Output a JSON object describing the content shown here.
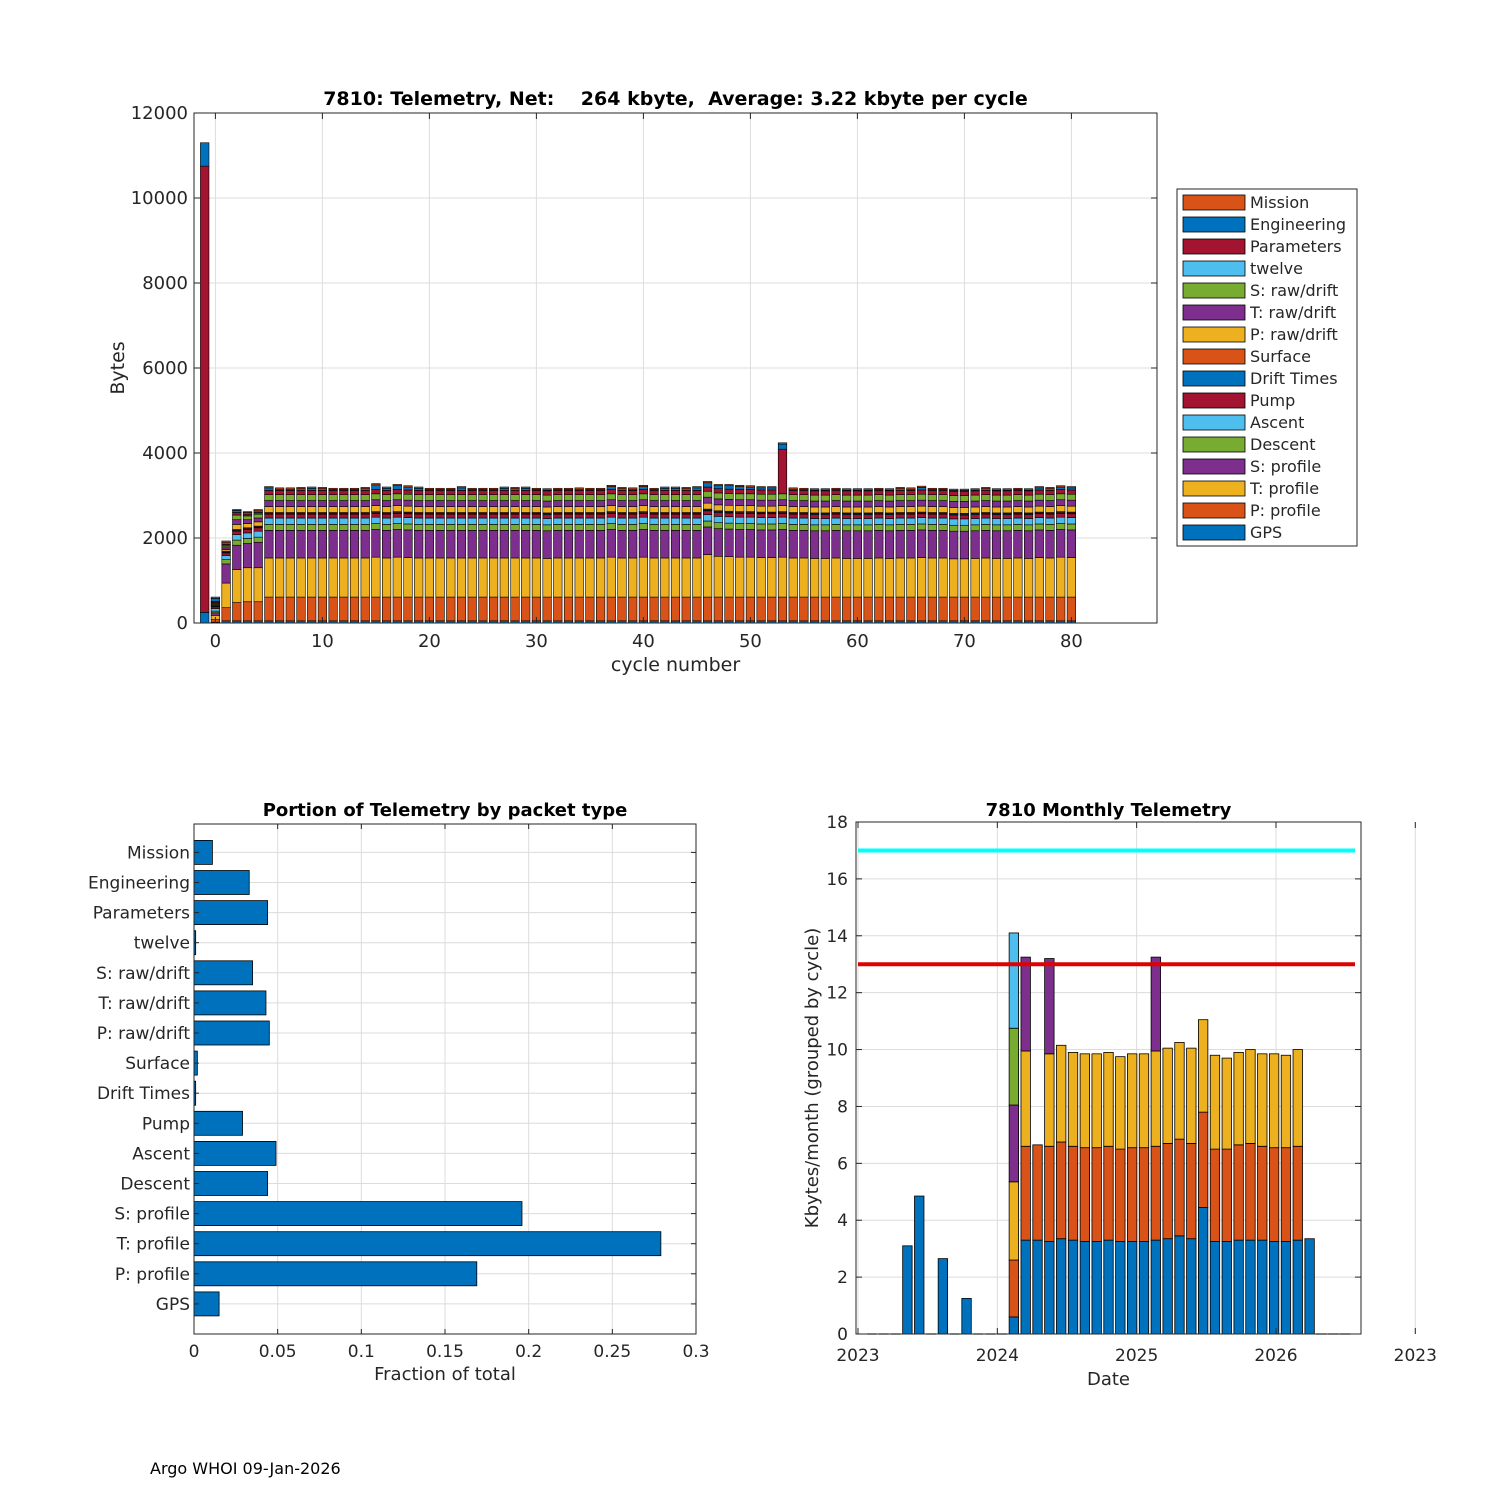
{
  "colors": {
    "GPS": "#0072BD",
    "P: profile": "#D95319",
    "T: profile": "#EDB120",
    "S: profile": "#7E2F8E",
    "Descent": "#77AC30",
    "Ascent": "#4DBEEE",
    "Pump": "#A2142F",
    "Drift Times": "#0072BD",
    "Surface": "#D95319",
    "P: raw/drift": "#EDB120",
    "T: raw/drift": "#7E2F8E",
    "S: raw/drift": "#77AC30",
    "twelve": "#4DBEEE",
    "Parameters": "#A2142F",
    "Engineering": "#0072BD",
    "Mission": "#D95319",
    "cyan_line": "#00FFFF",
    "red_line": "#E00000",
    "grid": "#dcdcdc"
  },
  "footer": "Argo WHOI 09-Jan-2026",
  "chart_data": [
    {
      "type": "bar",
      "stacked": true,
      "title": "7810: Telemetry, Net:    264 kbyte,  Average: 3.22 kbyte per cycle",
      "xlabel": "cycle number",
      "ylabel": "Bytes",
      "xlim": [
        -2,
        88
      ],
      "ylim": [
        0,
        12000
      ],
      "xticks": [
        0,
        10,
        20,
        30,
        40,
        50,
        60,
        70,
        80
      ],
      "yticks": [
        0,
        2000,
        4000,
        6000,
        8000,
        10000,
        12000
      ],
      "legend_position": "outside-right",
      "legend": [
        "Mission",
        "Engineering",
        "Parameters",
        "twelve",
        "S: raw/drift",
        "T: raw/drift",
        "P: raw/drift",
        "Surface",
        "Drift Times",
        "Pump",
        "Ascent",
        "Descent",
        "S: profile",
        "T: profile",
        "P: profile",
        "GPS"
      ],
      "stack_order": [
        "GPS",
        "P: profile",
        "T: profile",
        "S: profile",
        "Descent",
        "Ascent",
        "Pump",
        "Drift Times",
        "Surface",
        "P: raw/drift",
        "T: raw/drift",
        "S: raw/drift",
        "twelve",
        "Parameters",
        "Engineering",
        "Mission"
      ],
      "series_special": [
        {
          "x": -1,
          "segments": {
            "GPS": 250,
            "Pump": 10500,
            "Engineering": 550
          }
        },
        {
          "x": 0,
          "segments": {
            "GPS": 20,
            "P: profile": 60,
            "T: profile": 100,
            "S: profile": 60,
            "Descent": 40,
            "Ascent": 60,
            "Pump": 40,
            "Drift Times": 20,
            "Surface": 20,
            "P: raw/drift": 20,
            "T: raw/drift": 20,
            "S: raw/drift": 20,
            "Parameters": 30,
            "Engineering": 70,
            "Mission": 30
          }
        },
        {
          "x": 1,
          "segments": {
            "GPS": 50,
            "P: profile": 310,
            "T: profile": 580,
            "S: profile": 450,
            "Descent": 100,
            "Ascent": 100,
            "Pump": 60,
            "Drift Times": 20,
            "Surface": 20,
            "P: raw/drift": 40,
            "T: raw/drift": 40,
            "S: raw/drift": 40,
            "Parameters": 40,
            "Engineering": 40,
            "Mission": 40
          }
        },
        {
          "x": 2,
          "segments": {
            "GPS": 50,
            "P: profile": 430,
            "T: profile": 780,
            "S: profile": 570,
            "Descent": 120,
            "Ascent": 130,
            "Pump": 80,
            "Drift Times": 20,
            "Surface": 20,
            "P: raw/drift": 120,
            "T: raw/drift": 110,
            "S: raw/drift": 110,
            "Parameters": 60,
            "Engineering": 50,
            "Mission": 20
          }
        },
        {
          "x": 3,
          "segments": {
            "GPS": 50,
            "P: profile": 450,
            "T: profile": 800,
            "S: profile": 570,
            "Descent": 120,
            "Ascent": 130,
            "Pump": 80,
            "Drift Times": 20,
            "Surface": 20,
            "P: raw/drift": 100,
            "T: raw/drift": 90,
            "S: raw/drift": 90,
            "Parameters": 40,
            "Engineering": 40,
            "Mission": 20
          }
        },
        {
          "x": 4,
          "segments": {
            "GPS": 50,
            "P: profile": 450,
            "T: profile": 800,
            "S: profile": 600,
            "Descent": 120,
            "Ascent": 140,
            "Pump": 80,
            "Drift Times": 20,
            "Surface": 20,
            "P: raw/drift": 100,
            "T: raw/drift": 90,
            "S: raw/drift": 90,
            "Parameters": 40,
            "Engineering": 40,
            "Mission": 30
          }
        },
        {
          "x": 53,
          "segments": {
            "GPS": 50,
            "P: profile": 560,
            "T: profile": 940,
            "S: profile": 650,
            "Descent": 140,
            "Ascent": 150,
            "Pump": 90,
            "Drift Times": 20,
            "Surface": 20,
            "P: raw/drift": 140,
            "T: raw/drift": 140,
            "S: raw/drift": 140,
            "Parameters": 1050,
            "Engineering": 120,
            "Mission": 30
          }
        }
      ],
      "typical_cycle": {
        "GPS": 50,
        "P: profile": 560,
        "T: profile": 920,
        "S: profile": 650,
        "Descent": 140,
        "Ascent": 150,
        "Pump": 90,
        "Drift Times": 20,
        "Surface": 20,
        "P: raw/drift": 140,
        "T: raw/drift": 140,
        "S: raw/drift": 140,
        "Parameters": 100,
        "Engineering": 100,
        "Mission": 30
      },
      "regular_cycles": {
        "x_start": 5,
        "totals": [
          3210,
          3180,
          3180,
          3190,
          3200,
          3190,
          3170,
          3160,
          3140,
          3190,
          3280,
          3200,
          3260,
          3230,
          3200,
          3150,
          3130,
          3160,
          3210,
          3170,
          3160,
          3130,
          3200,
          3190,
          3200,
          3150,
          3110,
          3150,
          3160,
          3180,
          3140,
          3150,
          3240,
          3190,
          3180,
          3240,
          3170,
          3200,
          3200,
          3190,
          3210,
          3330,
          3260,
          3260,
          3240,
          3230,
          3210,
          3210,
          4270,
          3180,
          3170,
          3130,
          3130,
          3170,
          3140,
          3130,
          3110,
          3160,
          3140,
          3190,
          3180,
          3220,
          3150,
          3160,
          3090,
          3090,
          3120,
          3190,
          3150,
          3130,
          3160,
          3140,
          3210,
          3190,
          3230,
          3210
        ],
        "t_profile_values": [
          920,
          920,
          920,
          920,
          920,
          920,
          920,
          920,
          920,
          920,
          940,
          920,
          940,
          930,
          920,
          920,
          920,
          920,
          920,
          920,
          920,
          920,
          920,
          920,
          920,
          920,
          910,
          920,
          920,
          920,
          920,
          920,
          940,
          920,
          920,
          940,
          920,
          920,
          920,
          920,
          920,
          1000,
          960,
          950,
          940,
          940,
          930,
          930,
          940,
          920,
          920,
          910,
          910,
          920,
          910,
          910,
          910,
          920,
          910,
          920,
          920,
          930,
          920,
          920,
          900,
          900,
          910,
          920,
          910,
          910,
          920,
          910,
          930,
          920,
          940,
          930
        ]
      }
    },
    {
      "type": "bar",
      "orientation": "horizontal",
      "title": "Portion of Telemetry by packet type",
      "xlabel": "Fraction of total",
      "xlim": [
        0,
        0.3
      ],
      "xticks": [
        "0",
        "0.05",
        "0.1",
        "0.15",
        "0.2",
        "0.25",
        "0.3"
      ],
      "categories": [
        "GPS",
        "P: profile",
        "T: profile",
        "S: profile",
        "Descent",
        "Ascent",
        "Pump",
        "Drift Times",
        "Surface",
        "P: raw/drift",
        "T: raw/drift",
        "S: raw/drift",
        "twelve",
        "Parameters",
        "Engineering",
        "Mission"
      ],
      "values": [
        0.015,
        0.169,
        0.279,
        0.196,
        0.044,
        0.049,
        0.029,
        0.001,
        0.002,
        0.045,
        0.043,
        0.035,
        0.001,
        0.044,
        0.033,
        0.011
      ]
    },
    {
      "type": "bar",
      "stacked": true,
      "title": "7810 Monthly Telemetry",
      "xlabel": "Date",
      "ylabel": "Kbytes/month (grouped by cycle)",
      "ylim": [
        0,
        18
      ],
      "yticks": [
        0,
        2,
        4,
        6,
        8,
        10,
        12,
        14,
        16,
        18
      ],
      "xticks": [
        "2023",
        "2024",
        "2025",
        "2026",
        "2023"
      ],
      "hlines": [
        {
          "y": 17,
          "color": "cyan"
        },
        {
          "y": 13,
          "color": "red"
        }
      ],
      "months": [
        {
          "m": 0,
          "stack": []
        },
        {
          "m": 1,
          "stack": []
        },
        {
          "m": 2,
          "stack": []
        },
        {
          "m": 3,
          "stack": [
            {
              "c": "GPS",
              "v": 3.1
            }
          ]
        },
        {
          "m": 4,
          "stack": [
            {
              "c": "GPS",
              "v": 4.85
            }
          ]
        },
        {
          "m": 5,
          "stack": []
        },
        {
          "m": 6,
          "stack": [
            {
              "c": "GPS",
              "v": 2.65
            }
          ]
        },
        {
          "m": 7,
          "stack": []
        },
        {
          "m": 8,
          "stack": [
            {
              "c": "GPS",
              "v": 1.25
            }
          ]
        },
        {
          "m": 9,
          "stack": []
        },
        {
          "m": 10,
          "stack": []
        },
        {
          "m": 11,
          "stack": []
        },
        {
          "m": 12,
          "stack": [
            {
              "c": "GPS",
              "v": 0.6
            },
            {
              "c": "P: profile",
              "v": 2.0
            },
            {
              "c": "T: profile",
              "v": 2.75
            },
            {
              "c": "S: profile",
              "v": 2.7
            },
            {
              "c": "Descent",
              "v": 2.7
            },
            {
              "c": "Ascent",
              "v": 3.35
            }
          ]
        },
        {
          "m": 13,
          "stack": [
            {
              "c": "GPS",
              "v": 3.3
            },
            {
              "c": "P: profile",
              "v": 3.3
            },
            {
              "c": "T: profile",
              "v": 3.35
            },
            {
              "c": "S: profile",
              "v": 3.3
            }
          ]
        },
        {
          "m": 14,
          "stack": [
            {
              "c": "GPS",
              "v": 3.3
            },
            {
              "c": "P: profile",
              "v": 3.35
            }
          ]
        },
        {
          "m": 15,
          "stack": [
            {
              "c": "GPS",
              "v": 3.25
            },
            {
              "c": "P: profile",
              "v": 3.35
            },
            {
              "c": "T: profile",
              "v": 3.25
            },
            {
              "c": "S: profile",
              "v": 3.35
            }
          ]
        },
        {
          "m": 16,
          "stack": [
            {
              "c": "GPS",
              "v": 3.35
            },
            {
              "c": "P: profile",
              "v": 3.4
            },
            {
              "c": "T: profile",
              "v": 3.4
            }
          ]
        },
        {
          "m": 17,
          "stack": [
            {
              "c": "GPS",
              "v": 3.3
            },
            {
              "c": "P: profile",
              "v": 3.3
            },
            {
              "c": "T: profile",
              "v": 3.3
            }
          ]
        },
        {
          "m": 18,
          "stack": [
            {
              "c": "GPS",
              "v": 3.25
            },
            {
              "c": "P: profile",
              "v": 3.3
            },
            {
              "c": "T: profile",
              "v": 3.3
            }
          ]
        },
        {
          "m": 19,
          "stack": [
            {
              "c": "GPS",
              "v": 3.25
            },
            {
              "c": "P: profile",
              "v": 3.3
            },
            {
              "c": "T: profile",
              "v": 3.3
            }
          ]
        },
        {
          "m": 20,
          "stack": [
            {
              "c": "GPS",
              "v": 3.3
            },
            {
              "c": "P: profile",
              "v": 3.3
            },
            {
              "c": "T: profile",
              "v": 3.3
            }
          ]
        },
        {
          "m": 21,
          "stack": [
            {
              "c": "GPS",
              "v": 3.25
            },
            {
              "c": "P: profile",
              "v": 3.25
            },
            {
              "c": "T: profile",
              "v": 3.25
            }
          ]
        },
        {
          "m": 22,
          "stack": [
            {
              "c": "GPS",
              "v": 3.25
            },
            {
              "c": "P: profile",
              "v": 3.3
            },
            {
              "c": "T: profile",
              "v": 3.3
            }
          ]
        },
        {
          "m": 23,
          "stack": [
            {
              "c": "GPS",
              "v": 3.25
            },
            {
              "c": "P: profile",
              "v": 3.3
            },
            {
              "c": "T: profile",
              "v": 3.3
            }
          ]
        },
        {
          "m": 24,
          "stack": [
            {
              "c": "GPS",
              "v": 3.3
            },
            {
              "c": "P: profile",
              "v": 3.3
            },
            {
              "c": "T: profile",
              "v": 3.35
            },
            {
              "c": "S: profile",
              "v": 3.3
            }
          ]
        },
        {
          "m": 25,
          "stack": [
            {
              "c": "GPS",
              "v": 3.35
            },
            {
              "c": "P: profile",
              "v": 3.35
            },
            {
              "c": "T: profile",
              "v": 3.35
            }
          ]
        },
        {
          "m": 26,
          "stack": [
            {
              "c": "GPS",
              "v": 3.45
            },
            {
              "c": "P: profile",
              "v": 3.4
            },
            {
              "c": "T: profile",
              "v": 3.4
            }
          ]
        },
        {
          "m": 27,
          "stack": [
            {
              "c": "GPS",
              "v": 3.35
            },
            {
              "c": "P: profile",
              "v": 3.35
            },
            {
              "c": "T: profile",
              "v": 3.35
            }
          ]
        },
        {
          "m": 28,
          "stack": [
            {
              "c": "GPS",
              "v": 4.45
            },
            {
              "c": "P: profile",
              "v": 3.35
            },
            {
              "c": "T: profile",
              "v": 3.25
            }
          ]
        },
        {
          "m": 29,
          "stack": [
            {
              "c": "GPS",
              "v": 3.25
            },
            {
              "c": "P: profile",
              "v": 3.25
            },
            {
              "c": "T: profile",
              "v": 3.3
            }
          ]
        },
        {
          "m": 30,
          "stack": [
            {
              "c": "GPS",
              "v": 3.25
            },
            {
              "c": "P: profile",
              "v": 3.25
            },
            {
              "c": "T: profile",
              "v": 3.2
            }
          ]
        },
        {
          "m": 31,
          "stack": [
            {
              "c": "GPS",
              "v": 3.3
            },
            {
              "c": "P: profile",
              "v": 3.35
            },
            {
              "c": "T: profile",
              "v": 3.25
            }
          ]
        },
        {
          "m": 32,
          "stack": [
            {
              "c": "GPS",
              "v": 3.3
            },
            {
              "c": "P: profile",
              "v": 3.4
            },
            {
              "c": "T: profile",
              "v": 3.3
            }
          ]
        },
        {
          "m": 33,
          "stack": [
            {
              "c": "GPS",
              "v": 3.3
            },
            {
              "c": "P: profile",
              "v": 3.3
            },
            {
              "c": "T: profile",
              "v": 3.25
            }
          ]
        },
        {
          "m": 34,
          "stack": [
            {
              "c": "GPS",
              "v": 3.25
            },
            {
              "c": "P: profile",
              "v": 3.3
            },
            {
              "c": "T: profile",
              "v": 3.3
            }
          ]
        },
        {
          "m": 35,
          "stack": [
            {
              "c": "GPS",
              "v": 3.25
            },
            {
              "c": "P: profile",
              "v": 3.3
            },
            {
              "c": "T: profile",
              "v": 3.25
            }
          ]
        },
        {
          "m": 36,
          "stack": [
            {
              "c": "GPS",
              "v": 3.3
            },
            {
              "c": "P: profile",
              "v": 3.3
            },
            {
              "c": "T: profile",
              "v": 3.4
            }
          ]
        },
        {
          "m": 37,
          "stack": [
            {
              "c": "GPS",
              "v": 3.35
            }
          ]
        }
      ],
      "month_count": 41
    }
  ]
}
